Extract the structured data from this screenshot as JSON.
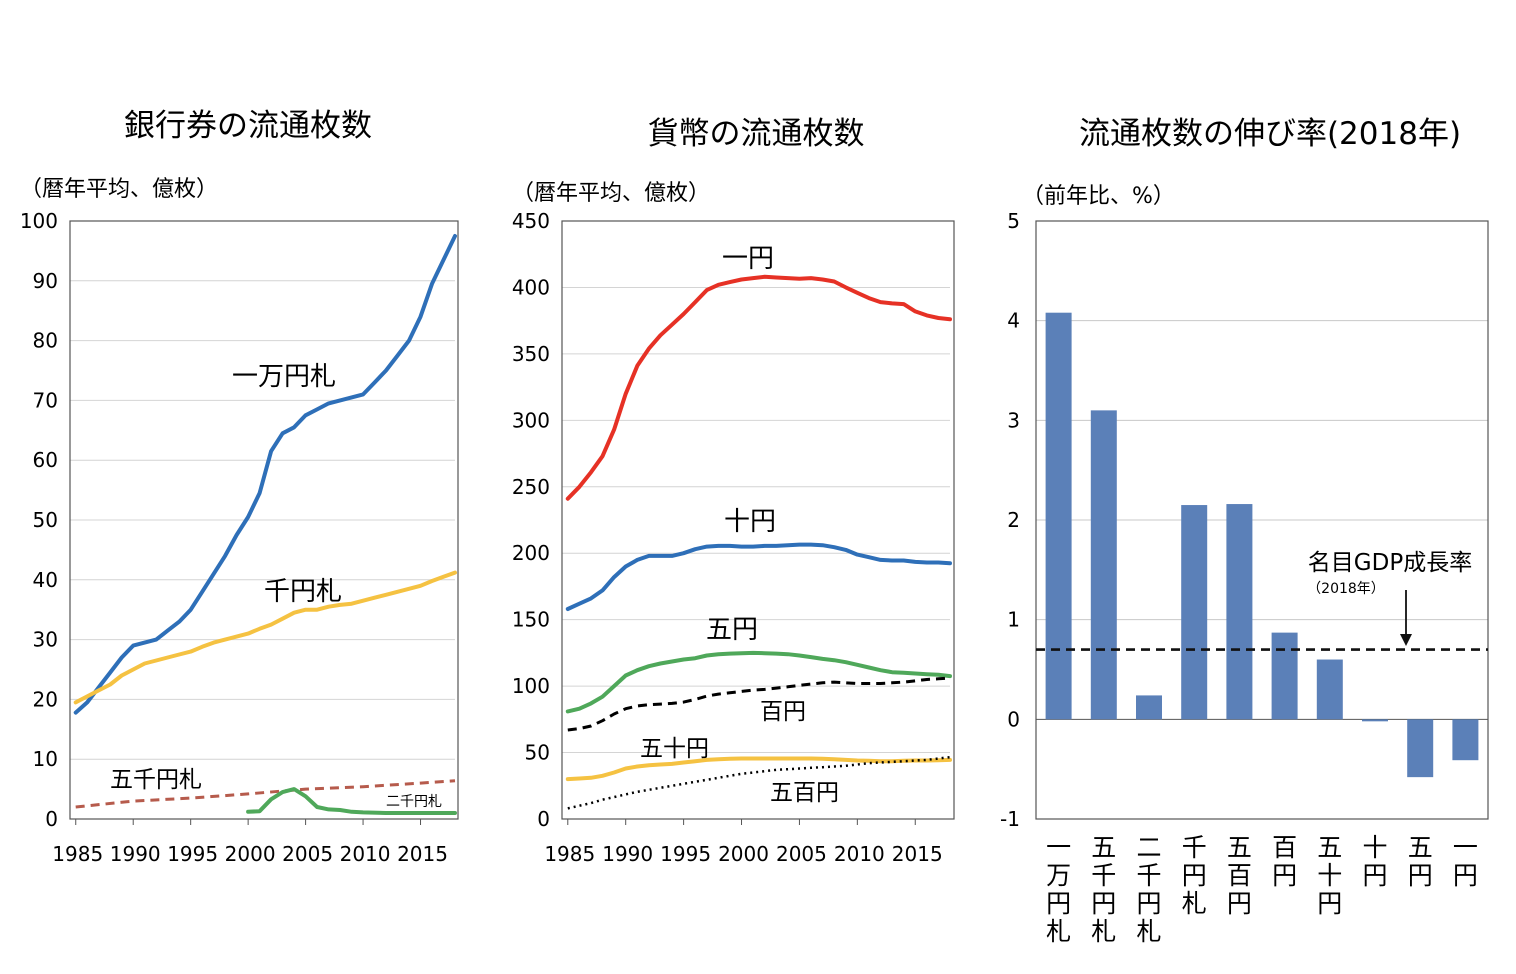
{
  "charts": {
    "banknotes": {
      "title": "銀行券の流通枚数",
      "unit": "（暦年平均、億枚）",
      "y_ticks": [
        "100",
        "90",
        "80",
        "70",
        "60",
        "50",
        "40",
        "30",
        "20",
        "10",
        "0"
      ],
      "x_ticks": [
        "1985",
        "1990",
        "1995",
        "2000",
        "2005",
        "2010",
        "2015"
      ],
      "labels": {
        "s10000": "一万円札",
        "s1000": "千円札",
        "s5000": "五千円札",
        "s2000": "二千円札"
      }
    },
    "coins": {
      "title": "貨幣の流通枚数",
      "unit": "（暦年平均、億枚）",
      "y_ticks": [
        "450",
        "400",
        "350",
        "300",
        "250",
        "200",
        "150",
        "100",
        "50",
        "0"
      ],
      "x_ticks": [
        "1985",
        "1990",
        "1995",
        "2000",
        "2005",
        "2010",
        "2015"
      ],
      "labels": {
        "s1": "一円",
        "s10": "十円",
        "s5": "五円",
        "s100": "百円",
        "s50": "五十円",
        "s500": "五百円"
      }
    },
    "growth": {
      "title": "流通枚数の伸び率(2018年)",
      "unit": "（前年比、%）",
      "y_ticks": [
        "5",
        "4",
        "3",
        "2",
        "1",
        "0",
        "-1"
      ],
      "gdp_label": "名目GDP成長率",
      "gdp_sub": "（2018年）"
    }
  },
  "chart_data": [
    {
      "type": "line",
      "title": "銀行券の流通枚数",
      "ylabel": "（暦年平均、億枚）",
      "xlim": [
        1985,
        2018
      ],
      "ylim": [
        0,
        100
      ],
      "x_ticks": [
        1985,
        1990,
        1995,
        2000,
        2005,
        2010,
        2015
      ],
      "series": [
        {
          "name": "一万円札",
          "color": "#2e6fb8",
          "style": "solid",
          "x": [
            1985,
            1986,
            1987,
            1988,
            1989,
            1990,
            1991,
            1992,
            1993,
            1994,
            1995,
            1996,
            1997,
            1998,
            1999,
            2000,
            2001,
            2002,
            2003,
            2004,
            2005,
            2006,
            2007,
            2008,
            2009,
            2010,
            2011,
            2012,
            2013,
            2014,
            2015,
            2016,
            2017,
            2018
          ],
          "y": [
            17.8,
            19.5,
            22,
            24.5,
            27,
            29,
            29.5,
            30,
            31.5,
            33,
            35,
            38,
            41,
            44,
            47.5,
            50.5,
            54.5,
            61.5,
            64.5,
            65.5,
            67.5,
            68.5,
            69.5,
            70,
            70.5,
            71,
            73,
            75,
            77.5,
            80,
            84,
            89.5,
            93.5,
            97.5
          ]
        },
        {
          "name": "千円札",
          "color": "#f5c242",
          "style": "solid",
          "x": [
            1985,
            1986,
            1987,
            1988,
            1989,
            1990,
            1991,
            1992,
            1993,
            1994,
            1995,
            1996,
            1997,
            1998,
            1999,
            2000,
            2001,
            2002,
            2003,
            2004,
            2005,
            2006,
            2007,
            2008,
            2009,
            2010,
            2011,
            2012,
            2013,
            2014,
            2015,
            2016,
            2017,
            2018
          ],
          "y": [
            19.5,
            20.5,
            21.5,
            22.5,
            24,
            25,
            26,
            26.5,
            27,
            27.5,
            28,
            28.8,
            29.5,
            30,
            30.5,
            31,
            31.8,
            32.5,
            33.5,
            34.5,
            35,
            35,
            35.5,
            35.8,
            36,
            36.5,
            37,
            37.5,
            38,
            38.5,
            39,
            39.8,
            40.5,
            41.2
          ]
        },
        {
          "name": "五千円札",
          "color": "#b65b4c",
          "style": "dashed",
          "x": [
            1985,
            1990,
            1995,
            2000,
            2005,
            2010,
            2015,
            2018
          ],
          "y": [
            2,
            3,
            3.5,
            4.2,
            5,
            5.4,
            6,
            6.4
          ]
        },
        {
          "name": "二千円札",
          "color": "#4fa85a",
          "style": "solid",
          "x": [
            2000,
            2001,
            2002,
            2003,
            2004,
            2005,
            2006,
            2007,
            2008,
            2009,
            2010,
            2012,
            2015,
            2018
          ],
          "y": [
            1.2,
            1.3,
            3.3,
            4.5,
            5,
            3.8,
            2,
            1.6,
            1.5,
            1.2,
            1.1,
            1,
            1,
            1
          ]
        }
      ]
    },
    {
      "type": "line",
      "title": "貨幣の流通枚数",
      "ylabel": "（暦年平均、億枚）",
      "xlim": [
        1985,
        2018
      ],
      "ylim": [
        0,
        450
      ],
      "x_ticks": [
        1985,
        1990,
        1995,
        2000,
        2005,
        2010,
        2015
      ],
      "series": [
        {
          "name": "一円",
          "color": "#e63125",
          "style": "solid",
          "x": [
            1985,
            1986,
            1987,
            1988,
            1989,
            1990,
            1991,
            1992,
            1993,
            1994,
            1995,
            1996,
            1997,
            1998,
            1999,
            2000,
            2001,
            2002,
            2003,
            2004,
            2005,
            2006,
            2007,
            2008,
            2009,
            2010,
            2011,
            2012,
            2013,
            2014,
            2015,
            2016,
            2017,
            2018
          ],
          "y": [
            241,
            250,
            261,
            273,
            293,
            320,
            341,
            354,
            364,
            372,
            380,
            389,
            398,
            402,
            404,
            406,
            407,
            408,
            407.5,
            407,
            406.5,
            407,
            406,
            404.5,
            400,
            396,
            392,
            389,
            388,
            387.5,
            382,
            379,
            377,
            376
          ]
        },
        {
          "name": "十円",
          "color": "#2e6fb8",
          "style": "solid",
          "x": [
            1985,
            1986,
            1987,
            1988,
            1989,
            1990,
            1991,
            1992,
            1993,
            1994,
            1995,
            1996,
            1997,
            1998,
            1999,
            2000,
            2001,
            2002,
            2003,
            2004,
            2005,
            2006,
            2007,
            2008,
            2009,
            2010,
            2011,
            2012,
            2013,
            2014,
            2015,
            2016,
            2017,
            2018
          ],
          "y": [
            158,
            162,
            166,
            172,
            182,
            190,
            195,
            198,
            198,
            198,
            200,
            203,
            205,
            205.5,
            205.5,
            205,
            205,
            205.5,
            205.5,
            206,
            206.5,
            206.5,
            206,
            204.5,
            202.5,
            199,
            197,
            195,
            194.5,
            194.5,
            193.5,
            193,
            193,
            192.5
          ]
        },
        {
          "name": "五円",
          "color": "#4fa85a",
          "style": "solid",
          "x": [
            1985,
            1986,
            1987,
            1988,
            1989,
            1990,
            1991,
            1992,
            1993,
            1994,
            1995,
            1996,
            1997,
            1998,
            1999,
            2000,
            2001,
            2002,
            2003,
            2004,
            2005,
            2006,
            2007,
            2008,
            2009,
            2010,
            2011,
            2012,
            2013,
            2014,
            2015,
            2016,
            2017,
            2018
          ],
          "y": [
            81,
            83,
            87,
            92,
            100,
            108,
            112,
            115,
            117,
            118.5,
            120,
            121,
            123,
            124,
            124.5,
            124.8,
            125,
            124.8,
            124.5,
            124,
            123,
            121.8,
            120.5,
            119.5,
            118,
            116,
            114,
            112,
            110.5,
            110,
            109.5,
            109,
            108.5,
            107.5
          ]
        },
        {
          "name": "百円",
          "color": "#000000",
          "style": "dashed",
          "x": [
            1985,
            1986,
            1987,
            1988,
            1989,
            1990,
            1991,
            1992,
            1993,
            1994,
            1995,
            1996,
            1997,
            1998,
            1999,
            2000,
            2001,
            2002,
            2003,
            2004,
            2005,
            2006,
            2007,
            2008,
            2009,
            2010,
            2011,
            2012,
            2013,
            2014,
            2015,
            2016,
            2017,
            2018
          ],
          "y": [
            67,
            68,
            70,
            74,
            79,
            83,
            85,
            86,
            86.5,
            87,
            88,
            90,
            92.5,
            94,
            95,
            96,
            97,
            97.5,
            98.5,
            99.5,
            100.5,
            101.5,
            102.5,
            103,
            102.5,
            102,
            102,
            102,
            102.5,
            103,
            104,
            105,
            105.5,
            106
          ]
        },
        {
          "name": "五十円",
          "color": "#f5c242",
          "style": "solid",
          "x": [
            1985,
            1986,
            1987,
            1988,
            1989,
            1990,
            1991,
            1992,
            1993,
            1994,
            1995,
            1996,
            1997,
            1998,
            1999,
            2000,
            2001,
            2002,
            2003,
            2004,
            2005,
            2006,
            2007,
            2008,
            2009,
            2010,
            2011,
            2012,
            2013,
            2014,
            2015,
            2016,
            2017,
            2018
          ],
          "y": [
            30,
            30.5,
            31,
            32.5,
            35,
            38,
            39.5,
            40.5,
            41,
            41.5,
            42.5,
            43.5,
            44.5,
            45,
            45.3,
            45.5,
            45.5,
            45.5,
            45.5,
            45.5,
            45.5,
            45.5,
            45.3,
            45,
            44.5,
            44,
            43.8,
            43.5,
            43.5,
            43.8,
            44,
            44,
            44.2,
            44.5
          ]
        },
        {
          "name": "五百円",
          "color": "#000000",
          "style": "dotted",
          "x": [
            1985,
            1986,
            1987,
            1988,
            1989,
            1990,
            1991,
            1992,
            1993,
            1994,
            1995,
            1996,
            1997,
            1998,
            1999,
            2000,
            2001,
            2002,
            2003,
            2004,
            2005,
            2006,
            2007,
            2008,
            2009,
            2010,
            2011,
            2012,
            2013,
            2014,
            2015,
            2016,
            2017,
            2018
          ],
          "y": [
            8,
            10,
            12,
            14.5,
            16.5,
            18.5,
            20.5,
            22,
            23.5,
            25,
            26.5,
            28,
            29.5,
            31,
            32.5,
            34,
            35,
            36,
            37,
            37.5,
            38,
            38.5,
            39,
            39.5,
            40,
            41,
            42,
            42.5,
            43,
            43.5,
            44,
            44.5,
            45.5,
            46.5
          ]
        }
      ]
    },
    {
      "type": "bar",
      "title": "流通枚数の伸び率(2018年)",
      "ylabel": "（前年比、%）",
      "ylim": [
        -1,
        5
      ],
      "categories": [
        "一万円札",
        "五千円札",
        "二千円札",
        "千円札",
        "五百円",
        "百円",
        "五十円",
        "十円",
        "五円",
        "一円"
      ],
      "values": [
        4.08,
        3.1,
        0.24,
        2.15,
        2.16,
        0.87,
        0.6,
        -0.02,
        -0.58,
        -0.41
      ],
      "color": "#5b80b8",
      "reference_line": {
        "label": "名目GDP成長率",
        "sublabel": "（2018年）",
        "value": 0.7
      }
    }
  ]
}
